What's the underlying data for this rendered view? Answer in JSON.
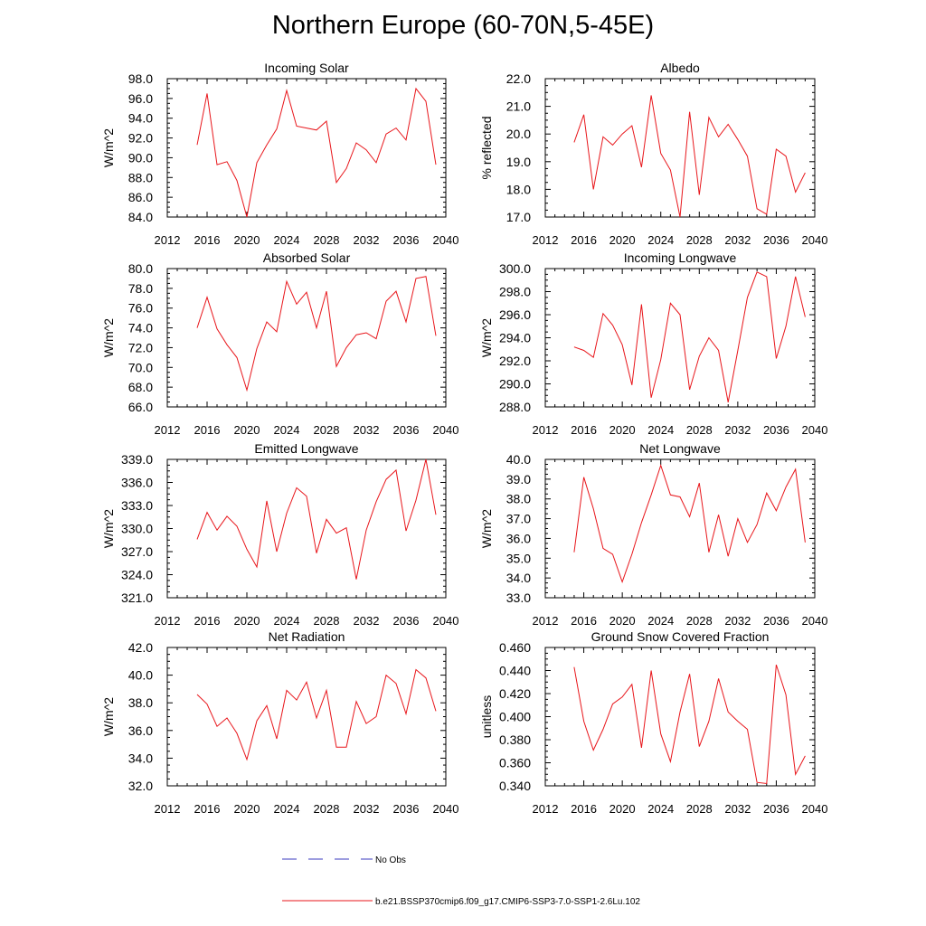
{
  "title": "Northern Europe (60-70N,5-45E)",
  "colors": {
    "series": "#e8161b",
    "no_obs": "#3b3bbf",
    "axis": "#000000"
  },
  "legend": [
    {
      "label": "No Obs",
      "style": "dashed",
      "color": "#3b3bbf"
    },
    {
      "label": "b.e21.BSSP370cmip6.f09_g17.CMIP6-SSP3-7.0-SSP1-2.6Lu.102",
      "style": "solid",
      "color": "#e8161b"
    }
  ],
  "chart_data": [
    {
      "type": "line",
      "title": "Incoming Solar",
      "ylabel": "W/m^2",
      "xlim": [
        2012,
        2040
      ],
      "xticks": [
        2012,
        2016,
        2020,
        2024,
        2028,
        2032,
        2036,
        2040
      ],
      "ylim": [
        84,
        98
      ],
      "yticks": [
        "84.0",
        "86.0",
        "88.0",
        "90.0",
        "92.0",
        "94.0",
        "96.0",
        "98.0"
      ],
      "x": [
        2015,
        2016,
        2017,
        2018,
        2019,
        2020,
        2021,
        2022,
        2023,
        2024,
        2025,
        2026,
        2027,
        2028,
        2029,
        2030,
        2031,
        2032,
        2033,
        2034,
        2035,
        2036,
        2037,
        2038,
        2039
      ],
      "values": [
        91.3,
        96.5,
        89.3,
        89.6,
        87.7,
        84.0,
        89.5,
        91.3,
        92.9,
        96.8,
        93.2,
        93.0,
        92.8,
        93.7,
        87.5,
        88.9,
        91.5,
        90.8,
        89.5,
        92.4,
        93.0,
        91.8,
        97.0,
        95.7,
        89.3
      ]
    },
    {
      "type": "line",
      "title": "Albedo",
      "ylabel": "% reflected",
      "xlim": [
        2012,
        2040
      ],
      "xticks": [
        2012,
        2016,
        2020,
        2024,
        2028,
        2032,
        2036,
        2040
      ],
      "ylim": [
        17,
        22
      ],
      "yticks": [
        "17.0",
        "18.0",
        "19.0",
        "20.0",
        "21.0",
        "22.0"
      ],
      "x": [
        2015,
        2016,
        2017,
        2018,
        2019,
        2020,
        2021,
        2022,
        2023,
        2024,
        2025,
        2026,
        2027,
        2028,
        2029,
        2030,
        2031,
        2032,
        2033,
        2034,
        2035,
        2036,
        2037,
        2038,
        2039
      ],
      "values": [
        19.7,
        20.7,
        18.0,
        19.9,
        19.6,
        20.0,
        20.3,
        18.8,
        21.4,
        19.3,
        18.7,
        17.0,
        20.8,
        17.8,
        20.6,
        19.9,
        20.35,
        19.8,
        19.2,
        17.3,
        17.1,
        19.45,
        19.2,
        17.9,
        18.6
      ]
    },
    {
      "type": "line",
      "title": "Absorbed Solar",
      "ylabel": "W/m^2",
      "xlim": [
        2012,
        2040
      ],
      "xticks": [
        2012,
        2016,
        2020,
        2024,
        2028,
        2032,
        2036,
        2040
      ],
      "ylim": [
        66,
        80
      ],
      "yticks": [
        "66.0",
        "68.0",
        "70.0",
        "72.0",
        "74.0",
        "76.0",
        "78.0",
        "80.0"
      ],
      "x": [
        2015,
        2016,
        2017,
        2018,
        2019,
        2020,
        2021,
        2022,
        2023,
        2024,
        2025,
        2026,
        2027,
        2028,
        2029,
        2030,
        2031,
        2032,
        2033,
        2034,
        2035,
        2036,
        2037,
        2038,
        2039
      ],
      "values": [
        74.0,
        77.1,
        73.9,
        72.3,
        71.0,
        67.7,
        71.9,
        74.6,
        73.6,
        78.7,
        76.4,
        77.6,
        74.0,
        77.7,
        70.1,
        72.0,
        73.3,
        73.5,
        72.9,
        76.7,
        77.7,
        74.6,
        79.0,
        79.2,
        73.2
      ]
    },
    {
      "type": "line",
      "title": "Incoming Longwave",
      "ylabel": "W/m^2",
      "xlim": [
        2012,
        2040
      ],
      "xticks": [
        2012,
        2016,
        2020,
        2024,
        2028,
        2032,
        2036,
        2040
      ],
      "ylim": [
        288,
        300
      ],
      "yticks": [
        "288.0",
        "290.0",
        "292.0",
        "294.0",
        "296.0",
        "298.0",
        "300.0"
      ],
      "x": [
        2015,
        2016,
        2017,
        2018,
        2019,
        2020,
        2021,
        2022,
        2023,
        2024,
        2025,
        2026,
        2027,
        2028,
        2029,
        2030,
        2031,
        2032,
        2033,
        2034,
        2035,
        2036,
        2037,
        2038,
        2039
      ],
      "values": [
        293.2,
        292.9,
        292.3,
        296.1,
        295.1,
        293.4,
        289.9,
        296.9,
        288.8,
        292.1,
        297.0,
        296.0,
        289.5,
        292.4,
        294.0,
        292.9,
        288.4,
        292.9,
        297.5,
        299.7,
        299.3,
        292.2,
        295.0,
        299.3,
        295.8
      ]
    },
    {
      "type": "line",
      "title": "Emitted Longwave",
      "ylabel": "W/m^2",
      "xlim": [
        2012,
        2040
      ],
      "xticks": [
        2012,
        2016,
        2020,
        2024,
        2028,
        2032,
        2036,
        2040
      ],
      "ylim": [
        321,
        339
      ],
      "yticks": [
        "321.0",
        "324.0",
        "327.0",
        "330.0",
        "333.0",
        "336.0",
        "339.0"
      ],
      "x": [
        2015,
        2016,
        2017,
        2018,
        2019,
        2020,
        2021,
        2022,
        2023,
        2024,
        2025,
        2026,
        2027,
        2028,
        2029,
        2030,
        2031,
        2032,
        2033,
        2034,
        2035,
        2036,
        2037,
        2038,
        2039
      ],
      "values": [
        328.6,
        332.1,
        329.8,
        331.6,
        330.3,
        327.3,
        325.0,
        333.6,
        327.0,
        332.0,
        335.3,
        334.2,
        326.8,
        331.2,
        329.4,
        330.1,
        323.4,
        329.8,
        333.5,
        336.4,
        337.6,
        329.7,
        333.7,
        339.0,
        331.8
      ]
    },
    {
      "type": "line",
      "title": "Net Longwave",
      "ylabel": "W/m^2",
      "xlim": [
        2012,
        2040
      ],
      "xticks": [
        2012,
        2016,
        2020,
        2024,
        2028,
        2032,
        2036,
        2040
      ],
      "ylim": [
        33,
        40
      ],
      "yticks": [
        "33.0",
        "34.0",
        "35.0",
        "36.0",
        "37.0",
        "38.0",
        "39.0",
        "40.0"
      ],
      "x": [
        2015,
        2016,
        2017,
        2018,
        2019,
        2020,
        2021,
        2022,
        2023,
        2024,
        2025,
        2026,
        2027,
        2028,
        2029,
        2030,
        2031,
        2032,
        2033,
        2034,
        2035,
        2036,
        2037,
        2038,
        2039
      ],
      "values": [
        35.3,
        39.1,
        37.5,
        35.5,
        35.2,
        33.8,
        35.2,
        36.8,
        38.2,
        39.7,
        38.2,
        38.1,
        37.1,
        38.8,
        35.3,
        37.2,
        35.1,
        37.0,
        35.8,
        36.7,
        38.3,
        37.4,
        38.6,
        39.5,
        35.8
      ]
    },
    {
      "type": "line",
      "title": "Net Radiation",
      "ylabel": "W/m^2",
      "xlim": [
        2012,
        2040
      ],
      "xticks": [
        2012,
        2016,
        2020,
        2024,
        2028,
        2032,
        2036,
        2040
      ],
      "ylim": [
        32,
        42
      ],
      "yticks": [
        "32.0",
        "34.0",
        "36.0",
        "38.0",
        "40.0",
        "42.0"
      ],
      "x": [
        2015,
        2016,
        2017,
        2018,
        2019,
        2020,
        2021,
        2022,
        2023,
        2024,
        2025,
        2026,
        2027,
        2028,
        2029,
        2030,
        2031,
        2032,
        2033,
        2034,
        2035,
        2036,
        2037,
        2038,
        2039
      ],
      "values": [
        38.6,
        37.9,
        36.3,
        36.9,
        35.8,
        33.9,
        36.7,
        37.8,
        35.4,
        38.9,
        38.2,
        39.5,
        36.9,
        38.9,
        34.8,
        34.8,
        38.1,
        36.5,
        37.0,
        40.0,
        39.4,
        37.2,
        40.4,
        39.8,
        37.4
      ]
    },
    {
      "type": "line",
      "title": "Ground Snow Covered Fraction",
      "ylabel": "unitless",
      "xlim": [
        2012,
        2040
      ],
      "xticks": [
        2012,
        2016,
        2020,
        2024,
        2028,
        2032,
        2036,
        2040
      ],
      "ylim": [
        0.34,
        0.46
      ],
      "yticks": [
        "0.340",
        "0.360",
        "0.380",
        "0.400",
        "0.420",
        "0.440",
        "0.460"
      ],
      "x": [
        2015,
        2016,
        2017,
        2018,
        2019,
        2020,
        2021,
        2022,
        2023,
        2024,
        2025,
        2026,
        2027,
        2028,
        2029,
        2030,
        2031,
        2032,
        2033,
        2034,
        2035,
        2036,
        2037,
        2038,
        2039
      ],
      "values": [
        0.443,
        0.396,
        0.371,
        0.389,
        0.411,
        0.417,
        0.428,
        0.373,
        0.44,
        0.385,
        0.361,
        0.404,
        0.437,
        0.374,
        0.396,
        0.433,
        0.404,
        0.396,
        0.389,
        0.343,
        0.342,
        0.445,
        0.419,
        0.35,
        0.366
      ]
    }
  ]
}
